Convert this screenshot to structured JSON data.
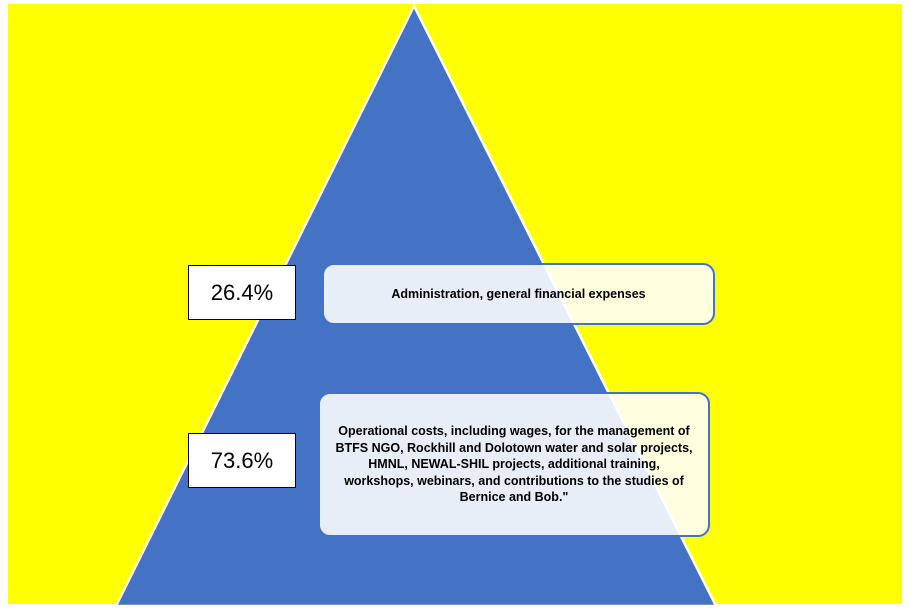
{
  "colors": {
    "background": "#ffff00",
    "pyramid": "#4472c4",
    "label_border": "#4472c4",
    "percent_box_border": "#000000"
  },
  "chart_data": {
    "type": "pyramid",
    "tiers": [
      {
        "value": 26.4,
        "percent_label": "26.4%",
        "description": "Administration, general financial expenses"
      },
      {
        "value": 73.6,
        "percent_label": "73.6%",
        "description": "Operational costs, including wages, for the management of BTFS NGO, Rockhill and Dolotown water and solar projects, HMNL, NEWAL-SHIL projects, additional training, workshops, webinars, and contributions to the studies of Bernice and Bob.\""
      }
    ]
  }
}
